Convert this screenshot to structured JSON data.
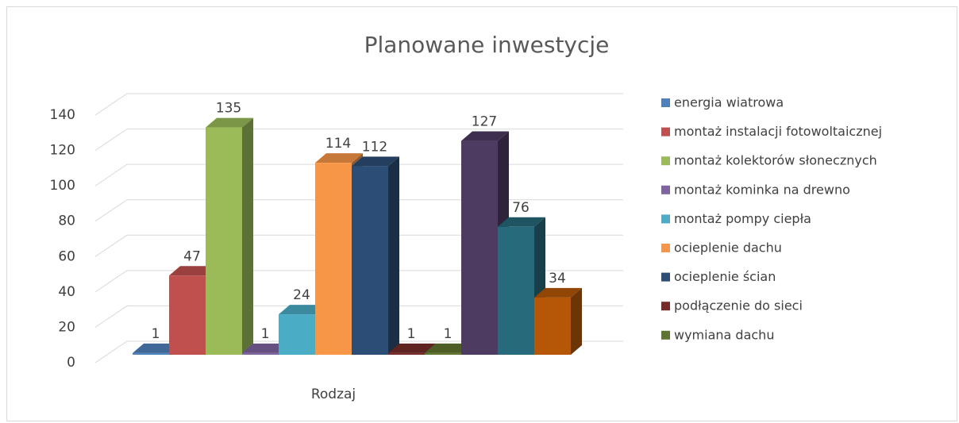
{
  "chart_data": {
    "type": "bar3d",
    "title": "Planowane inwestycje",
    "xlabel": "Rodzaj",
    "categories": [
      "Rodzaj"
    ],
    "series": [
      {
        "name": "energia wiatrowa",
        "color": "#4f81bd",
        "values": [
          1
        ]
      },
      {
        "name": "montaż instalacji fotowoltaicznej",
        "color": "#c0504d",
        "values": [
          47
        ]
      },
      {
        "name": "montaż kolektorów słonecznych",
        "color": "#9bbb59",
        "values": [
          135
        ]
      },
      {
        "name": "montaż kominka na drewno",
        "color": "#8064a2",
        "values": [
          1
        ]
      },
      {
        "name": "montaż pompy ciepła",
        "color": "#4bacc6",
        "values": [
          24
        ]
      },
      {
        "name": "ocieplenie dachu",
        "color": "#f79646",
        "values": [
          114
        ]
      },
      {
        "name": "ocieplenie ścian",
        "color": "#2c4d75",
        "values": [
          112
        ]
      },
      {
        "name": "podłączenie do sieci",
        "color": "#772c2a",
        "values": [
          1
        ]
      },
      {
        "name": "wymiana dachu",
        "color": "#5f7530",
        "values": [
          1
        ]
      },
      {
        "name": null,
        "color": "#4d3b62",
        "values": [
          127
        ]
      },
      {
        "name": null,
        "color": "#276a7c",
        "values": [
          76
        ]
      },
      {
        "name": null,
        "color": "#b65708",
        "values": [
          34
        ]
      }
    ],
    "ylim": [
      0,
      140
    ],
    "yticks": [
      0,
      20,
      40,
      60,
      80,
      100,
      120,
      140
    ],
    "grid": true,
    "legend": "right"
  }
}
